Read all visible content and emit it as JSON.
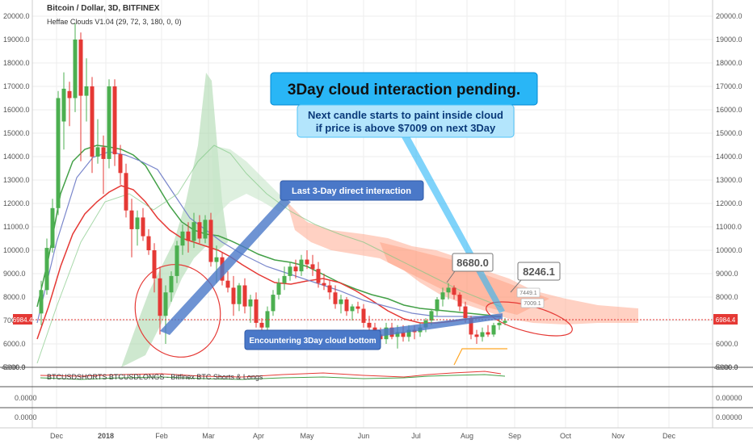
{
  "header": {
    "title": "Bitcoin / Dollar, 3D, BITFINEX",
    "indicator": "Heffae Clouds V1.04 (29, 72, 3, 180, 0, 0)"
  },
  "price_axis": {
    "ticks": [
      "20000.0",
      "19000.0",
      "18000.0",
      "17000.0",
      "16000.0",
      "15000.0",
      "14000.0",
      "13000.0",
      "12000.0",
      "11000.0",
      "10000.0",
      "9000.0",
      "8000.0",
      "7000.0",
      "6000.0",
      "5000.0"
    ],
    "current_price": "6984.4"
  },
  "time_axis": {
    "labels": [
      "Dec",
      "2018",
      "Feb",
      "Mar",
      "Apr",
      "May",
      "Jun",
      "Jul",
      "Aug",
      "Sep",
      "Oct",
      "Nov",
      "Dec"
    ]
  },
  "annotations": {
    "main_title": "3Day cloud interaction pending.",
    "sub_line1": "Next candle starts to paint inside cloud",
    "sub_line2": "if price is above $7009 on next 3Day",
    "last_interaction": "Last 3-Day direct interaction",
    "encountering": "Encountering 3Day cloud bottom",
    "label_8680": "8680.0",
    "label_8246": "8246.1",
    "label_7449": "7449.1",
    "label_7009": "7009.1"
  },
  "lower_panes": {
    "shorts_longs_label": "BTCUSDSHORTS BTCUSDLONGS - Bitfinex BTC Shorts & Longs",
    "pane1_top_left": "40000.0",
    "pane1_top_right": "40000.0",
    "pane1_right_value": "0.00000",
    "pane2_right_value": "0.00000",
    "pane2_left_value": "0.0000",
    "pane3_left_value": "0.0000"
  },
  "colors": {
    "up_candle": "#4caf50",
    "down_candle": "#e53935",
    "bubble_fill": "#29b6f6",
    "sub_fill": "#b3e5fc",
    "callout_fill": "#4a78c8",
    "price_tag": "#e53935",
    "cloud_green": "#a5d6a7",
    "cloud_red": "#ffab91"
  },
  "chart_data": {
    "type": "candlestick",
    "title": "Bitcoin / Dollar, 3D, BITFINEX",
    "ylim": [
      5000,
      20000
    ],
    "candles": [
      {
        "x": 51,
        "o": 7300,
        "h": 8700,
        "l": 6800,
        "c": 8300
      },
      {
        "x": 58,
        "o": 8300,
        "h": 10500,
        "l": 8100,
        "c": 10100
      },
      {
        "x": 65,
        "o": 10100,
        "h": 12200,
        "l": 9900,
        "c": 11800
      },
      {
        "x": 72,
        "o": 11800,
        "h": 16800,
        "l": 11500,
        "c": 16500
      },
      {
        "x": 79,
        "o": 15500,
        "h": 17600,
        "l": 14300,
        "c": 16900
      },
      {
        "x": 86,
        "o": 16800,
        "h": 17200,
        "l": 15300,
        "c": 16500
      },
      {
        "x": 93,
        "o": 16500,
        "h": 19700,
        "l": 15900,
        "c": 19000
      },
      {
        "x": 100,
        "o": 19000,
        "h": 19300,
        "l": 13800,
        "c": 16600
      },
      {
        "x": 107,
        "o": 16600,
        "h": 18200,
        "l": 15500,
        "c": 17000
      },
      {
        "x": 114,
        "o": 17000,
        "h": 17400,
        "l": 13300,
        "c": 14000
      },
      {
        "x": 121,
        "o": 14000,
        "h": 15600,
        "l": 13700,
        "c": 14400
      },
      {
        "x": 128,
        "o": 14400,
        "h": 14900,
        "l": 12400,
        "c": 13900
      },
      {
        "x": 135,
        "o": 13900,
        "h": 17300,
        "l": 13500,
        "c": 17000
      },
      {
        "x": 142,
        "o": 17000,
        "h": 17300,
        "l": 13600,
        "c": 14100
      },
      {
        "x": 149,
        "o": 14100,
        "h": 14500,
        "l": 12800,
        "c": 13300
      },
      {
        "x": 156,
        "o": 13300,
        "h": 13700,
        "l": 11400,
        "c": 11700
      },
      {
        "x": 163,
        "o": 11700,
        "h": 12200,
        "l": 9700,
        "c": 10900
      },
      {
        "x": 170,
        "o": 10900,
        "h": 11700,
        "l": 10200,
        "c": 11400
      },
      {
        "x": 177,
        "o": 11400,
        "h": 11800,
        "l": 10400,
        "c": 10600
      },
      {
        "x": 184,
        "o": 10600,
        "h": 10900,
        "l": 9800,
        "c": 10000
      },
      {
        "x": 191,
        "o": 10000,
        "h": 10300,
        "l": 8200,
        "c": 8800
      },
      {
        "x": 198,
        "o": 8800,
        "h": 9300,
        "l": 6400,
        "c": 7200
      },
      {
        "x": 205,
        "o": 7200,
        "h": 8500,
        "l": 6000,
        "c": 8200
      },
      {
        "x": 212,
        "o": 8200,
        "h": 9100,
        "l": 7800,
        "c": 8900
      },
      {
        "x": 219,
        "o": 8900,
        "h": 10400,
        "l": 8600,
        "c": 10200
      },
      {
        "x": 226,
        "o": 10200,
        "h": 11100,
        "l": 9800,
        "c": 10800
      },
      {
        "x": 233,
        "o": 10800,
        "h": 11200,
        "l": 9900,
        "c": 10400
      },
      {
        "x": 240,
        "o": 10400,
        "h": 11600,
        "l": 10100,
        "c": 11200
      },
      {
        "x": 247,
        "o": 11200,
        "h": 11500,
        "l": 10300,
        "c": 10500
      },
      {
        "x": 254,
        "o": 10500,
        "h": 11500,
        "l": 10300,
        "c": 11300
      },
      {
        "x": 261,
        "o": 11300,
        "h": 11600,
        "l": 9300,
        "c": 9500
      },
      {
        "x": 268,
        "o": 9500,
        "h": 10200,
        "l": 8600,
        "c": 9700
      },
      {
        "x": 275,
        "o": 9700,
        "h": 9900,
        "l": 8500,
        "c": 8700
      },
      {
        "x": 282,
        "o": 8700,
        "h": 9100,
        "l": 8200,
        "c": 8400
      },
      {
        "x": 289,
        "o": 8400,
        "h": 8900,
        "l": 7200,
        "c": 7700
      },
      {
        "x": 296,
        "o": 7700,
        "h": 8600,
        "l": 7400,
        "c": 8500
      },
      {
        "x": 303,
        "o": 8500,
        "h": 8800,
        "l": 7300,
        "c": 7600
      },
      {
        "x": 310,
        "o": 7600,
        "h": 8100,
        "l": 6900,
        "c": 7900
      },
      {
        "x": 317,
        "o": 7900,
        "h": 8200,
        "l": 6700,
        "c": 6900
      },
      {
        "x": 324,
        "o": 6900,
        "h": 7100,
        "l": 6500,
        "c": 6700
      },
      {
        "x": 331,
        "o": 6700,
        "h": 7600,
        "l": 6500,
        "c": 7400
      },
      {
        "x": 338,
        "o": 7400,
        "h": 8300,
        "l": 7200,
        "c": 8100
      },
      {
        "x": 345,
        "o": 8100,
        "h": 8800,
        "l": 7900,
        "c": 8600
      },
      {
        "x": 352,
        "o": 8600,
        "h": 9300,
        "l": 8300,
        "c": 8900
      },
      {
        "x": 359,
        "o": 8900,
        "h": 9500,
        "l": 8700,
        "c": 9300
      },
      {
        "x": 366,
        "o": 9300,
        "h": 9600,
        "l": 8800,
        "c": 9100
      },
      {
        "x": 373,
        "o": 9100,
        "h": 9800,
        "l": 8900,
        "c": 9600
      },
      {
        "x": 380,
        "o": 9600,
        "h": 10000,
        "l": 9200,
        "c": 9400
      },
      {
        "x": 387,
        "o": 9400,
        "h": 9800,
        "l": 8900,
        "c": 9200
      },
      {
        "x": 394,
        "o": 9200,
        "h": 9500,
        "l": 8400,
        "c": 8600
      },
      {
        "x": 401,
        "o": 8600,
        "h": 9000,
        "l": 8300,
        "c": 8500
      },
      {
        "x": 408,
        "o": 8500,
        "h": 8700,
        "l": 7900,
        "c": 8200
      },
      {
        "x": 415,
        "o": 8200,
        "h": 8500,
        "l": 7500,
        "c": 7700
      },
      {
        "x": 422,
        "o": 7700,
        "h": 8100,
        "l": 7300,
        "c": 7900
      },
      {
        "x": 429,
        "o": 7900,
        "h": 8000,
        "l": 7200,
        "c": 7400
      },
      {
        "x": 436,
        "o": 7400,
        "h": 7700,
        "l": 7000,
        "c": 7600
      },
      {
        "x": 443,
        "o": 7600,
        "h": 7800,
        "l": 7300,
        "c": 7500
      },
      {
        "x": 450,
        "o": 7500,
        "h": 7700,
        "l": 6700,
        "c": 6900
      },
      {
        "x": 457,
        "o": 6900,
        "h": 7200,
        "l": 6500,
        "c": 6700
      },
      {
        "x": 464,
        "o": 6700,
        "h": 6900,
        "l": 6100,
        "c": 6400
      },
      {
        "x": 471,
        "o": 6400,
        "h": 6700,
        "l": 5900,
        "c": 6200
      },
      {
        "x": 478,
        "o": 6200,
        "h": 6900,
        "l": 6000,
        "c": 6700
      },
      {
        "x": 485,
        "o": 6700,
        "h": 6900,
        "l": 6200,
        "c": 6300
      },
      {
        "x": 492,
        "o": 6300,
        "h": 6800,
        "l": 5800,
        "c": 6500
      },
      {
        "x": 499,
        "o": 6500,
        "h": 6800,
        "l": 6100,
        "c": 6300
      },
      {
        "x": 506,
        "o": 6300,
        "h": 6800,
        "l": 6100,
        "c": 6600
      },
      {
        "x": 513,
        "o": 6600,
        "h": 6800,
        "l": 6200,
        "c": 6500
      },
      {
        "x": 520,
        "o": 6500,
        "h": 6900,
        "l": 6300,
        "c": 6700
      },
      {
        "x": 527,
        "o": 6700,
        "h": 7100,
        "l": 6500,
        "c": 7000
      },
      {
        "x": 534,
        "o": 7000,
        "h": 7500,
        "l": 6800,
        "c": 7400
      },
      {
        "x": 541,
        "o": 7400,
        "h": 8000,
        "l": 7200,
        "c": 7900
      },
      {
        "x": 548,
        "o": 7900,
        "h": 8400,
        "l": 7600,
        "c": 8200
      },
      {
        "x": 555,
        "o": 8200,
        "h": 8600,
        "l": 7900,
        "c": 8400
      },
      {
        "x": 562,
        "o": 8400,
        "h": 8500,
        "l": 7900,
        "c": 8100
      },
      {
        "x": 569,
        "o": 8100,
        "h": 8200,
        "l": 7400,
        "c": 7600
      },
      {
        "x": 576,
        "o": 7600,
        "h": 7800,
        "l": 6900,
        "c": 7100
      },
      {
        "x": 583,
        "o": 7100,
        "h": 7200,
        "l": 6200,
        "c": 6400
      },
      {
        "x": 590,
        "o": 6400,
        "h": 6600,
        "l": 6000,
        "c": 6300
      },
      {
        "x": 597,
        "o": 6300,
        "h": 6700,
        "l": 6100,
        "c": 6500
      },
      {
        "x": 604,
        "o": 6500,
        "h": 6800,
        "l": 6300,
        "c": 6400
      },
      {
        "x": 611,
        "o": 6400,
        "h": 6900,
        "l": 6300,
        "c": 6800
      },
      {
        "x": 618,
        "o": 6800,
        "h": 7100,
        "l": 6600,
        "c": 6900
      },
      {
        "x": 625,
        "o": 6900,
        "h": 7100,
        "l": 6800,
        "c": 6984
      }
    ]
  }
}
